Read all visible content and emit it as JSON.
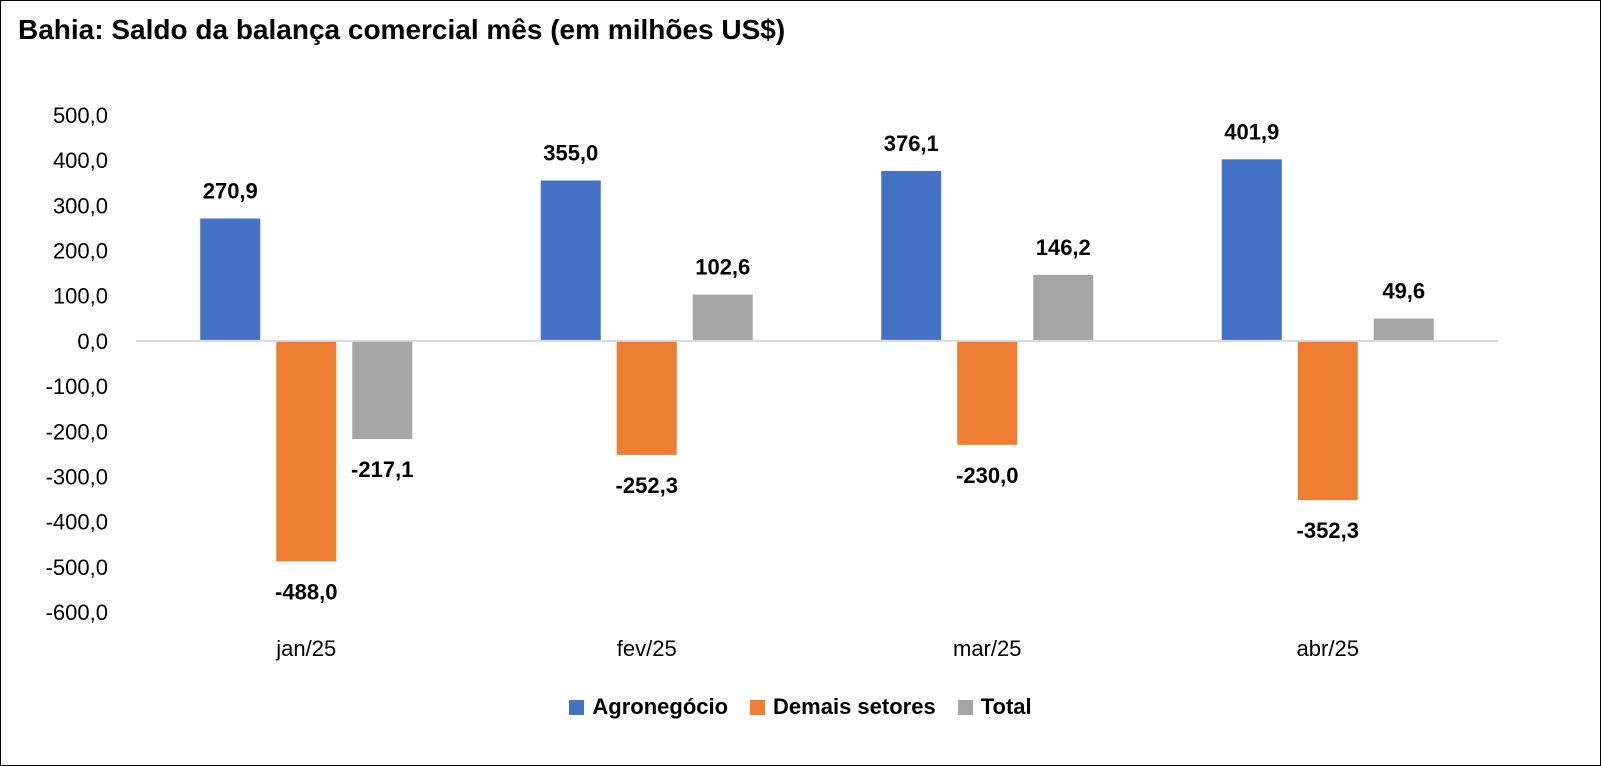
{
  "chart_data": {
    "type": "bar",
    "title": "Bahia: Saldo da balança comercial mês (em milhões US$)",
    "categories": [
      "jan/25",
      "fev/25",
      "mar/25",
      "abr/25"
    ],
    "series": [
      {
        "name": "Agronegócio",
        "color": "#4472C4",
        "values": [
          270.9,
          355.0,
          376.1,
          401.9
        ],
        "labels": [
          "270,9",
          "355,0",
          "376,1",
          "401,9"
        ]
      },
      {
        "name": "Demais setores",
        "color": "#ED7D31",
        "values": [
          -488.0,
          -252.3,
          -230.0,
          -352.3
        ],
        "labels": [
          "-488,0",
          "-252,3",
          "-230,0",
          "-352,3"
        ]
      },
      {
        "name": "Total",
        "color": "#A5A5A5",
        "values": [
          -217.1,
          102.6,
          146.2,
          49.6
        ],
        "labels": [
          "-217,1",
          "102,6",
          "146,2",
          "49,6"
        ]
      }
    ],
    "ylim": [
      -600,
      500
    ],
    "yticks": [
      "500,0",
      "400,0",
      "300,0",
      "200,0",
      "100,0",
      "0,0",
      "-100,0",
      "-200,0",
      "-300,0",
      "-400,0",
      "-500,0",
      "-600,0"
    ],
    "legend": "bottom",
    "grid": false
  }
}
